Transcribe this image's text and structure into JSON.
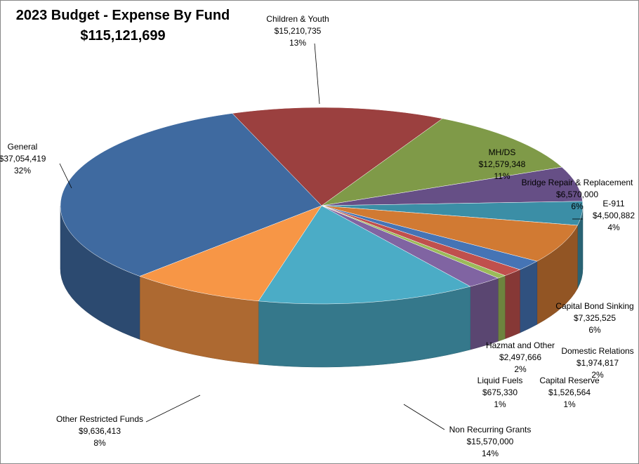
{
  "chart_data": {
    "type": "pie3d",
    "title": "2023  Budget - Expense By Fund",
    "subtitle": "$115,121,699",
    "categories": [
      "Children & Youth",
      "MH/DS",
      "Bridge Repair & Replacement",
      "E-911",
      "Capital Bond Sinking",
      "Domestic Relations",
      "Capital Reserve",
      "Liquid Fuels",
      "Hazmat and Other",
      "Non Recurring Grants",
      "Other Restricted Funds",
      "General"
    ],
    "values": [
      15210735,
      12579348,
      6570000,
      4500882,
      7325525,
      1974817,
      1526564,
      675330,
      2497666,
      15570000,
      9636413,
      37054419
    ],
    "value_labels": [
      "$15,210,735",
      "$12,579,348",
      "$6,570,000",
      "$4,500,882",
      "$7,325,525",
      "$1,974,817",
      "$1,526,564",
      "$675,330",
      "$2,497,666",
      "$15,570,000",
      "$9,636,413",
      "$37,054,419"
    ],
    "percents": [
      13,
      11,
      6,
      4,
      6,
      2,
      1,
      1,
      2,
      14,
      8,
      32
    ],
    "percent_labels": [
      "13%",
      "11%",
      "6%",
      "4%",
      "6%",
      "2%",
      "1%",
      "1%",
      "2%",
      "14%",
      "8%",
      "32%"
    ],
    "colors": [
      "#9b403f",
      "#7f9a48",
      "#664f86",
      "#3b8ea6",
      "#d17a33",
      "#4574b5",
      "#c0504d",
      "#9bbb59",
      "#8064a2",
      "#4bacc6",
      "#f79646",
      "#3f6aa0"
    ]
  }
}
